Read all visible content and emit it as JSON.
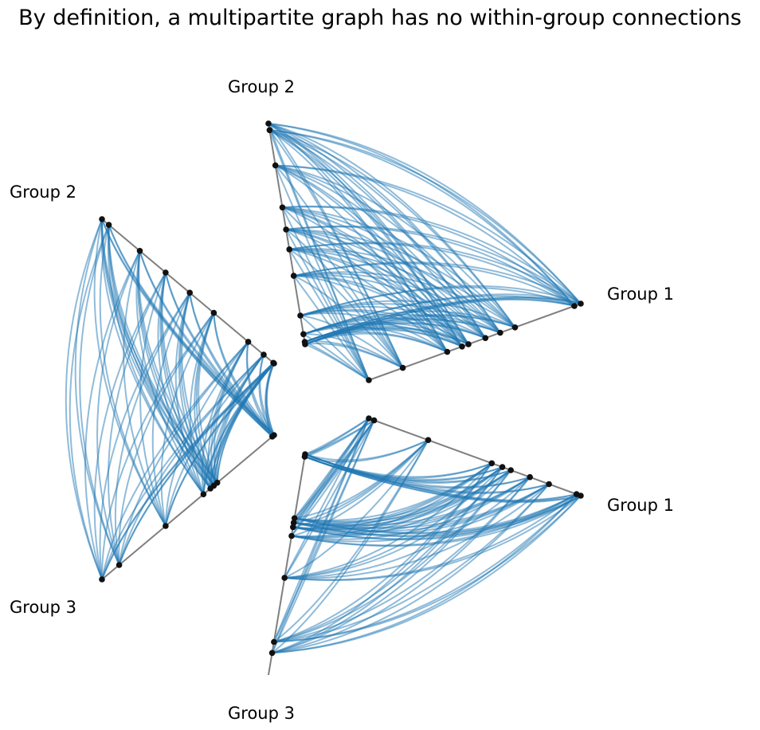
{
  "title": "By definition, a multipartite graph has no within-group connections",
  "colors": {
    "edge": "#1f77b4",
    "axis": "#7f7f7f",
    "node": "#111111"
  },
  "panels": [
    {
      "name": "top-right",
      "labels": [
        "Group 1",
        "Group 2"
      ],
      "axes": [
        "group-1-axis",
        "group-2-axis"
      ],
      "groups": [
        {
          "name": "Group 1",
          "positions": [
            0.0,
            0.16,
            0.37,
            0.44,
            0.47,
            0.55,
            0.62,
            0.69,
            0.97,
            1.0
          ]
        },
        {
          "name": "Group 2",
          "positions": [
            0.0,
            0.011,
            0.046,
            0.13,
            0.31,
            0.43,
            0.52,
            0.62,
            0.81,
            0.97,
            1.0
          ]
        }
      ]
    },
    {
      "name": "bottom-right",
      "labels": [
        "Group 1",
        "Group 3"
      ],
      "axes": [
        "group-1-axis",
        "group-3-axis"
      ],
      "groups": [
        {
          "name": "Group 1",
          "positions": [
            0.0,
            0.025,
            0.28,
            0.58,
            0.63,
            0.67,
            0.76,
            0.85,
            0.98,
            1.0
          ]
        },
        {
          "name": "Group 3",
          "positions": [
            0.0,
            0.011,
            0.29,
            0.31,
            0.33,
            0.37,
            0.56,
            0.85,
            0.9
          ]
        }
      ]
    },
    {
      "name": "left",
      "labels": [
        "Group 2",
        "Group 3"
      ],
      "axes": [
        "group-2-axis",
        "group-3-axis"
      ],
      "groups": [
        {
          "name": "Group 2",
          "positions": [
            0.0,
            0.004,
            0.06,
            0.15,
            0.35,
            0.49,
            0.63,
            0.78,
            0.96,
            1.0
          ]
        },
        {
          "name": "Group 3",
          "positions": [
            0.0,
            0.01,
            0.33,
            0.35,
            0.37,
            0.41,
            0.63,
            0.9,
            1.0
          ]
        }
      ]
    }
  ]
}
